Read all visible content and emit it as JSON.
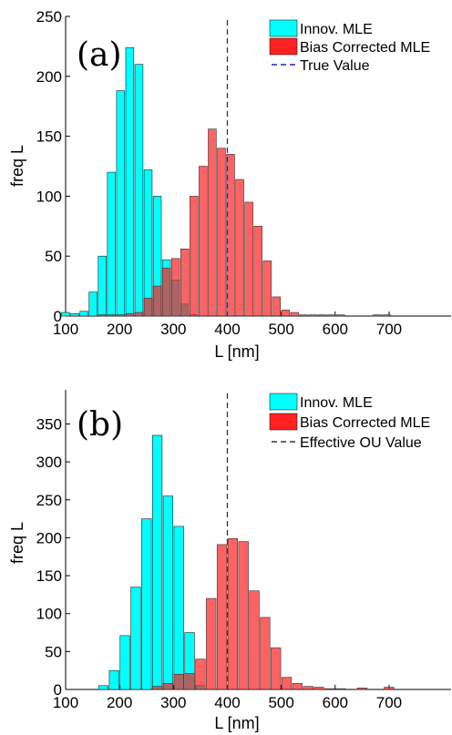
{
  "chart_data": [
    {
      "type": "bar",
      "panel_label": "(a)",
      "xlabel": "L [nm]",
      "ylabel": "freq L",
      "xlim": [
        100,
        815
      ],
      "ylim": [
        0,
        250
      ],
      "xticks": [
        "100",
        "200",
        "300",
        "400",
        "500",
        "600",
        "700"
      ],
      "yticks": [
        "0",
        "50",
        "100",
        "150",
        "200",
        "250"
      ],
      "legend_position": "top-right",
      "bar_width": 17,
      "series": [
        {
          "name": "Innov. MLE",
          "color": "#00ffff",
          "x": [
            100,
            117,
            134,
            151,
            168,
            185,
            202,
            219,
            236,
            253,
            270,
            287,
            304,
            321,
            338
          ],
          "values": [
            3,
            2,
            4,
            20,
            50,
            120,
            188,
            224,
            210,
            122,
            100,
            47,
            30,
            10,
            1
          ]
        },
        {
          "name": "Bias Corrected MLE",
          "color": "#ff2020",
          "x": [
            168,
            185,
            202,
            219,
            236,
            253,
            270,
            287,
            304,
            321,
            338,
            355,
            372,
            389,
            406,
            423,
            440,
            457,
            474,
            491,
            508,
            525,
            542,
            559,
            576,
            593,
            610,
            678,
            695
          ],
          "values": [
            1,
            1,
            1,
            2,
            3,
            15,
            25,
            40,
            48,
            56,
            100,
            125,
            156,
            140,
            135,
            114,
            95,
            75,
            46,
            16,
            5,
            3,
            1,
            1,
            1,
            1,
            1,
            1,
            1
          ]
        }
      ],
      "true_value": {
        "name": "True Value",
        "x": 400,
        "color": "#2222cc"
      }
    },
    {
      "type": "bar",
      "panel_label": "(b)",
      "xlabel": "L [nm]",
      "ylabel": "freq L",
      "xlim": [
        100,
        815
      ],
      "ylim": [
        0,
        395
      ],
      "xticks": [
        "100",
        "200",
        "300",
        "400",
        "500",
        "600",
        "700"
      ],
      "yticks": [
        "0",
        "50",
        "100",
        "150",
        "200",
        "250",
        "300",
        "350"
      ],
      "legend_position": "top-right",
      "bar_width": 20,
      "series": [
        {
          "name": "Innov. MLE",
          "color": "#00ffff",
          "x": [
            170,
            190,
            210,
            230,
            250,
            270,
            290,
            310,
            330,
            350
          ],
          "values": [
            5,
            25,
            71,
            135,
            225,
            335,
            255,
            215,
            75,
            5
          ]
        },
        {
          "name": "Bias Corrected MLE",
          "color": "#ff2020",
          "x": [
            270,
            290,
            310,
            330,
            350,
            370,
            390,
            410,
            430,
            450,
            470,
            490,
            510,
            530,
            550,
            570,
            590,
            610,
            650,
            700
          ],
          "values": [
            4,
            8,
            20,
            21,
            40,
            120,
            191,
            199,
            195,
            130,
            95,
            55,
            16,
            8,
            4,
            3,
            1,
            1,
            2,
            3
          ]
        }
      ],
      "true_value": {
        "name": "Effective OU Value",
        "x": 400,
        "color": "#333333"
      }
    }
  ]
}
